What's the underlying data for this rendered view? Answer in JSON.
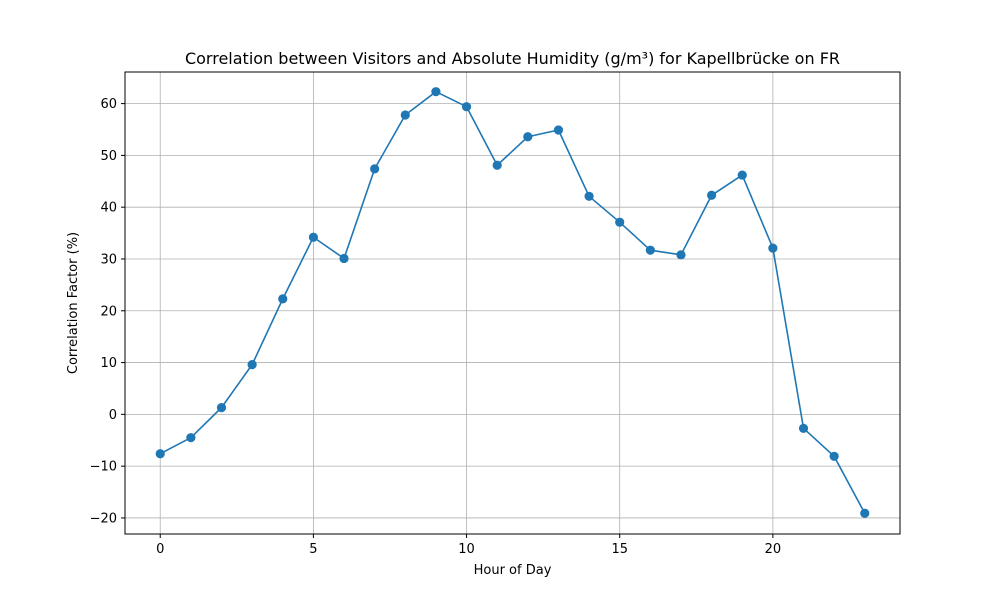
{
  "chart_data": {
    "type": "line",
    "title": "Correlation between Visitors and Absolute Humidity (g/m³) for Kapellbrücke on FR",
    "xlabel": "Hour of Day",
    "ylabel": "Correlation Factor (%)",
    "xlim": [
      -1.15,
      24.15
    ],
    "ylim": [
      -23.1,
      66.1
    ],
    "xticks": [
      0,
      5,
      10,
      15,
      20
    ],
    "yticks": [
      -20,
      -10,
      0,
      10,
      20,
      30,
      40,
      50,
      60
    ],
    "xtick_labels": [
      "0",
      "5",
      "10",
      "15",
      "20"
    ],
    "ytick_labels": [
      "−20",
      "−10",
      "0",
      "10",
      "20",
      "30",
      "40",
      "50",
      "60"
    ],
    "grid": true,
    "series": [
      {
        "color": "#1f77b4",
        "marker": "circle",
        "x": [
          0,
          1,
          2,
          3,
          4,
          5,
          6,
          7,
          8,
          9,
          10,
          11,
          12,
          13,
          14,
          15,
          16,
          17,
          18,
          19,
          20,
          21,
          22,
          23
        ],
        "y": [
          -7.6,
          -4.5,
          1.3,
          9.6,
          22.3,
          34.2,
          30.1,
          47.4,
          57.8,
          62.3,
          59.4,
          48.1,
          53.6,
          54.9,
          42.1,
          37.1,
          31.7,
          30.8,
          42.3,
          46.2,
          32.1,
          -2.7,
          -8.1,
          -19.1
        ]
      }
    ]
  }
}
